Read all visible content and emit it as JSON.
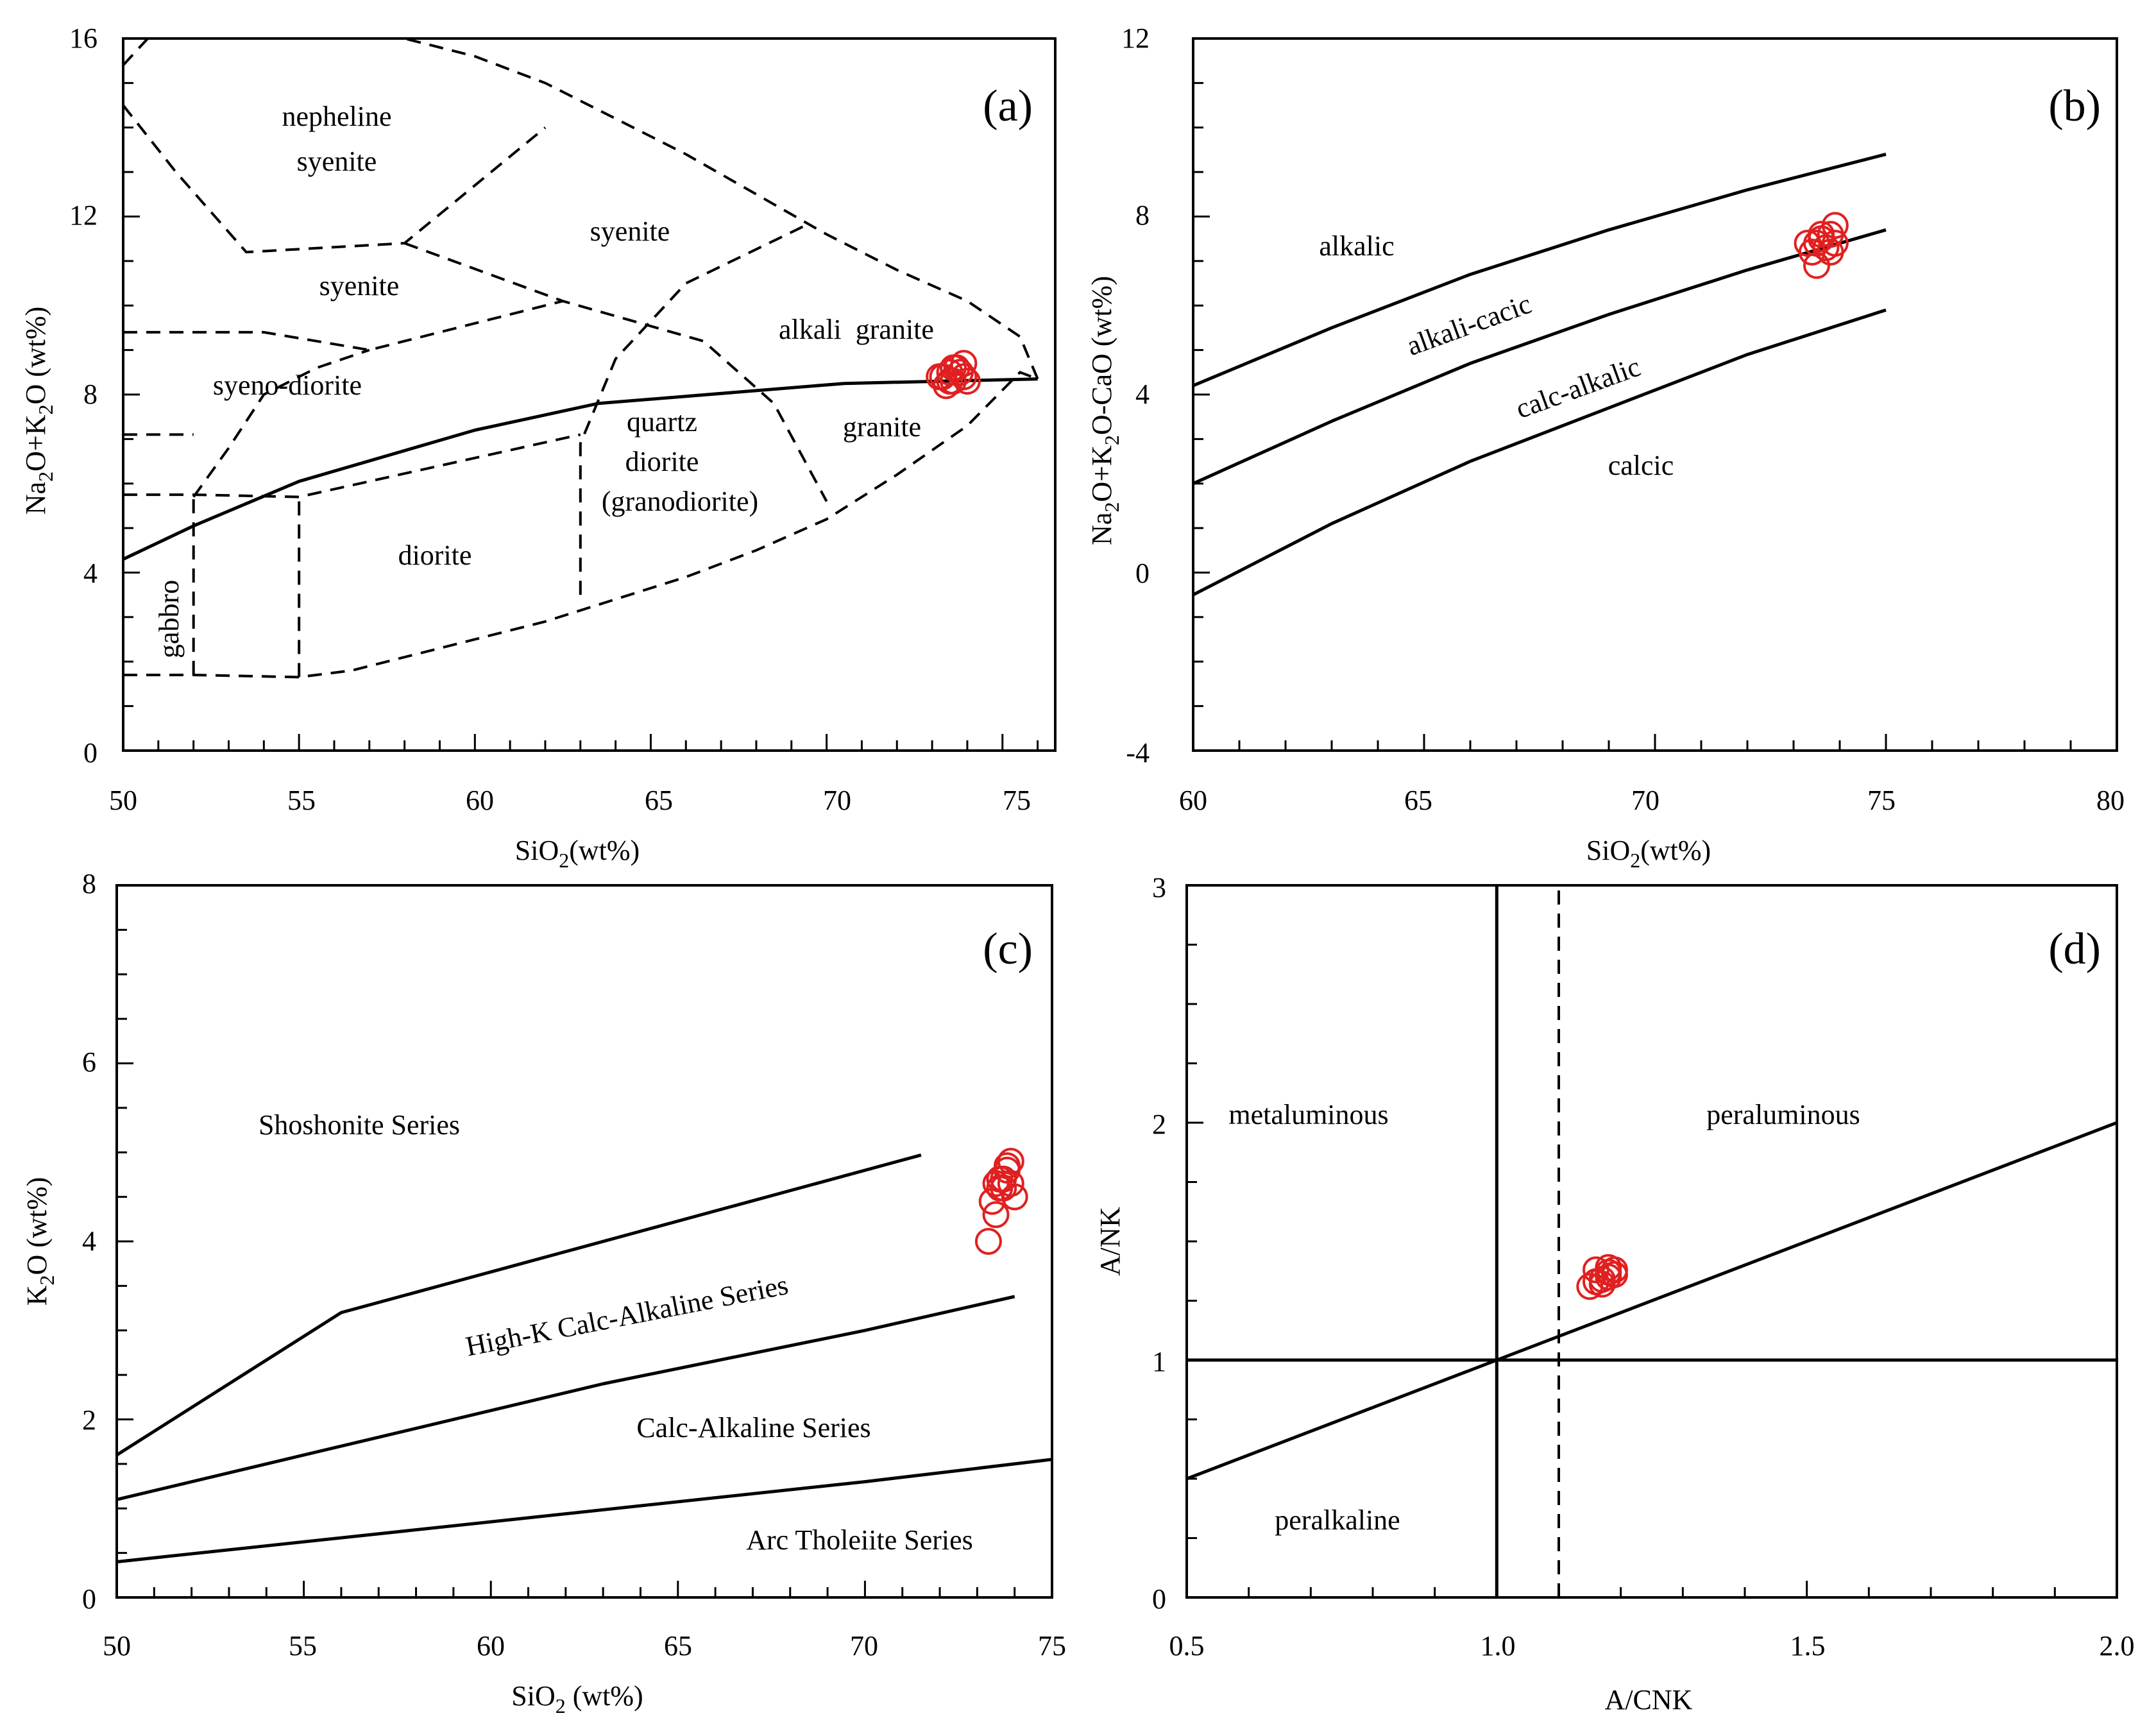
{
  "chart_data": [
    {
      "id": "a",
      "type": "scatter",
      "panel_label": "(a)",
      "xlabel": "SiO2(wt%)",
      "ylabel": "Na2O+K2O (wt%)",
      "xlim": [
        50,
        76.5
      ],
      "ylim": [
        0,
        16
      ],
      "xticks": [
        50,
        55,
        60,
        65,
        70,
        75
      ],
      "yticks": [
        0,
        4,
        8,
        12,
        16
      ],
      "xminor": 1,
      "yminor": 1,
      "solid_lines": [
        [
          [
            50,
            4.3
          ],
          [
            52,
            5.05
          ],
          [
            55,
            6.05
          ],
          [
            60,
            7.2
          ],
          [
            63.5,
            7.8
          ],
          [
            70.5,
            8.25
          ],
          [
            76,
            8.35
          ]
        ]
      ],
      "dashed_lines": [
        [
          [
            50,
            1.7
          ],
          [
            52,
            1.7
          ],
          [
            55,
            1.65
          ],
          [
            56.5,
            1.8
          ],
          [
            58,
            2.1
          ],
          [
            60,
            2.5
          ],
          [
            62,
            2.9
          ],
          [
            64,
            3.4
          ],
          [
            66,
            3.9
          ],
          [
            68,
            4.5
          ],
          [
            70,
            5.2
          ],
          [
            72,
            6.2
          ],
          [
            74,
            7.3
          ],
          [
            75.5,
            8.5
          ],
          [
            76,
            8.35
          ]
        ],
        [
          [
            76,
            8.35
          ],
          [
            75.5,
            9.3
          ],
          [
            74,
            10.1
          ],
          [
            72,
            10.8
          ],
          [
            70,
            11.6
          ],
          [
            68,
            12.5
          ],
          [
            66,
            13.4
          ],
          [
            64,
            14.2
          ],
          [
            62,
            15
          ],
          [
            60,
            15.6
          ],
          [
            58,
            16
          ]
        ],
        [
          [
            50,
            15.4
          ],
          [
            50.7,
            16
          ]
        ],
        [
          [
            52,
            1.7
          ],
          [
            52,
            5.7
          ]
        ],
        [
          [
            55,
            1.65
          ],
          [
            55,
            5.7
          ]
        ],
        [
          [
            50,
            5.75
          ],
          [
            52,
            5.75
          ],
          [
            55,
            5.7
          ],
          [
            63,
            7.1
          ]
        ],
        [
          [
            50,
            7.1
          ],
          [
            52,
            7.1
          ]
        ],
        [
          [
            52,
            5.7
          ],
          [
            53,
            6.8
          ],
          [
            54,
            8
          ],
          [
            55.5,
            8.6
          ],
          [
            57,
            9.0
          ]
        ],
        [
          [
            50,
            9.4
          ],
          [
            54,
            9.4
          ],
          [
            57,
            9.0
          ],
          [
            62.5,
            10.1
          ]
        ],
        [
          [
            63,
            3.5
          ],
          [
            63,
            6.9
          ],
          [
            64,
            8.8
          ],
          [
            66,
            10.5
          ],
          [
            69.4,
            11.8
          ]
        ],
        [
          [
            50,
            14.5
          ],
          [
            51.5,
            13
          ],
          [
            53.5,
            11.2
          ],
          [
            58,
            11.4
          ],
          [
            62,
            14.0
          ]
        ],
        [
          [
            58,
            11.4
          ],
          [
            62.5,
            10.1
          ],
          [
            66.5,
            9.2
          ],
          [
            68.5,
            7.8
          ],
          [
            70,
            5.6
          ]
        ]
      ],
      "region_labels": [
        "nepheline",
        "syenite",
        "syenite",
        "syenite",
        "syeno-diorite",
        "alkali  granite",
        "quartz",
        "diorite",
        "(granodiorite)",
        "granite",
        "diorite",
        "gabbro"
      ],
      "series": [
        {
          "name": "samples",
          "x": [
            73.2,
            73.5,
            73.7,
            73.9,
            73.4,
            73.6,
            73.8,
            74.0,
            73.3,
            73.6,
            73.9,
            73.5
          ],
          "y": [
            8.4,
            8.5,
            8.6,
            8.4,
            8.2,
            8.3,
            8.5,
            8.3,
            8.4,
            8.6,
            8.7,
            8.3
          ]
        }
      ]
    },
    {
      "id": "b",
      "type": "scatter",
      "panel_label": "(b)",
      "xlabel": "SiO2(wt%)",
      "ylabel": "Na2O+K2O-CaO (wt%)",
      "xlim": [
        60,
        80
      ],
      "ylim": [
        -4,
        12
      ],
      "xticks": [
        60,
        65,
        70,
        75,
        80
      ],
      "yticks": [
        -4,
        0,
        4,
        8,
        12
      ],
      "xminor": 1,
      "yminor": 1,
      "solid_lines": [
        [
          [
            60,
            4.2
          ],
          [
            63,
            5.5
          ],
          [
            66,
            6.7
          ],
          [
            69,
            7.7
          ],
          [
            72,
            8.6
          ],
          [
            75,
            9.4
          ]
        ],
        [
          [
            60,
            2.0
          ],
          [
            63,
            3.4
          ],
          [
            66,
            4.7
          ],
          [
            69,
            5.8
          ],
          [
            72,
            6.8
          ],
          [
            75,
            7.7
          ]
        ],
        [
          [
            60,
            -0.5
          ],
          [
            63,
            1.1
          ],
          [
            66,
            2.5
          ],
          [
            69,
            3.7
          ],
          [
            72,
            4.9
          ],
          [
            75,
            5.9
          ]
        ]
      ],
      "dashed_lines": [],
      "region_labels": [
        "alkalic",
        "alkali-cacic",
        "calc-alkalic",
        "calcic"
      ],
      "series": [
        {
          "name": "samples",
          "x": [
            73.5,
            73.6,
            73.8,
            73.9,
            73.4,
            73.7,
            73.9,
            73.5,
            73.6,
            73.8,
            73.3,
            73.6
          ],
          "y": [
            7.4,
            7.5,
            7.6,
            7.8,
            7.2,
            7.3,
            7.4,
            6.9,
            7.6,
            7.2,
            7.4,
            7.5
          ]
        }
      ]
    },
    {
      "id": "c",
      "type": "scatter",
      "panel_label": "(c)",
      "xlabel": "SiO2 (wt%)",
      "ylabel": "K2O (wt%)",
      "xlim": [
        50,
        75
      ],
      "ylim": [
        0,
        8
      ],
      "xticks": [
        50,
        55,
        60,
        65,
        70,
        75
      ],
      "yticks": [
        0,
        2,
        4,
        6,
        8
      ],
      "xminor": 1,
      "yminor": 0.5,
      "solid_lines": [
        [
          [
            50,
            1.6
          ],
          [
            56,
            3.2
          ],
          [
            71.5,
            4.97
          ]
        ],
        [
          [
            50,
            1.1
          ],
          [
            57,
            1.8
          ],
          [
            63,
            2.4
          ],
          [
            70,
            3.0
          ],
          [
            74,
            3.38
          ]
        ],
        [
          [
            50,
            0.4
          ],
          [
            60,
            0.85
          ],
          [
            70,
            1.3
          ],
          [
            75,
            1.55
          ]
        ]
      ],
      "dashed_lines": [],
      "region_labels": [
        "Shoshonite Series",
        "High-K Calc-Alkaline Series",
        "Calc-Alkaline Series",
        "Arc Tholeiite Series"
      ],
      "series": [
        {
          "name": "samples",
          "x": [
            73.3,
            73.5,
            73.6,
            73.7,
            73.8,
            73.9,
            73.4,
            73.7,
            73.6,
            73.8,
            73.9,
            74.0,
            73.5
          ],
          "y": [
            4.0,
            4.3,
            4.6,
            4.7,
            4.85,
            4.9,
            4.45,
            4.6,
            4.7,
            4.8,
            4.65,
            4.5,
            4.65
          ]
        }
      ]
    },
    {
      "id": "d",
      "type": "scatter",
      "panel_label": "(d)",
      "xlabel": "A/CNK",
      "ylabel": "A/NK",
      "xlim": [
        0.5,
        2.0
      ],
      "ylim": [
        0,
        3
      ],
      "xticks": [
        0.5,
        1.0,
        1.5,
        2.0
      ],
      "xticklabels": [
        "0.5",
        "1.0",
        "1.5",
        "2.0"
      ],
      "yticks": [
        0,
        1,
        2,
        3
      ],
      "xminor": 0.1,
      "yminor": 0.25,
      "solid_lines": [
        [
          [
            1.0,
            0
          ],
          [
            1.0,
            3
          ]
        ],
        [
          [
            0.5,
            1
          ],
          [
            2.0,
            1
          ]
        ],
        [
          [
            0.5,
            0.5
          ],
          [
            2.0,
            2.0
          ]
        ]
      ],
      "dashed_lines": [
        [
          [
            1.1,
            0
          ],
          [
            1.1,
            3
          ]
        ]
      ],
      "region_labels": [
        "metaluminous",
        "peraluminous",
        "peralkaline"
      ],
      "series": [
        {
          "name": "samples",
          "x": [
            1.15,
            1.16,
            1.17,
            1.18,
            1.19,
            1.16,
            1.18,
            1.17,
            1.19,
            1.18
          ],
          "y": [
            1.31,
            1.38,
            1.34,
            1.37,
            1.38,
            1.33,
            1.35,
            1.32,
            1.36,
            1.39
          ]
        }
      ]
    }
  ],
  "colors": {
    "marker": "#e02020",
    "line": "#000000"
  }
}
